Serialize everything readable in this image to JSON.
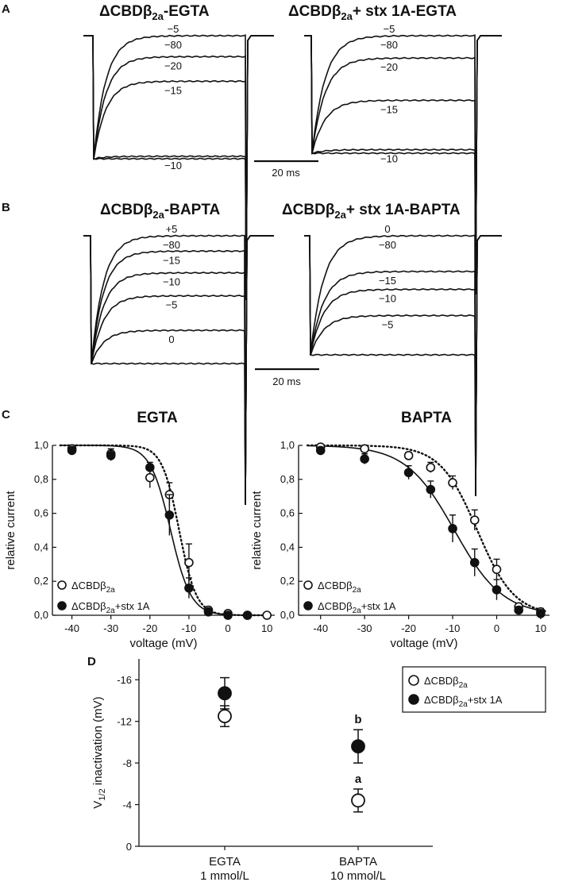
{
  "panel_a": {
    "letter": "A",
    "left_title": {
      "pre": "ΔCBDβ",
      "sub": "2a",
      "post": "-EGTA"
    },
    "right_title": {
      "pre": "ΔCBDβ",
      "sub": "2a",
      "post": "+ stx 1A-EGTA"
    },
    "scale_label": "20 ms",
    "left_traces": [
      {
        "label": "−5",
        "level": 1.0
      },
      {
        "label": "−10",
        "level": 0.98
      },
      {
        "label": "−15",
        "level": 0.37
      },
      {
        "label": "−20",
        "level": 0.17
      },
      {
        "label": "−80",
        "level": 0.0
      }
    ],
    "right_traces": [
      {
        "label": "−5",
        "level": 1.0
      },
      {
        "label": "−10",
        "level": 0.97
      },
      {
        "label": "−15",
        "level": 0.55
      },
      {
        "label": "−20",
        "level": 0.19
      },
      {
        "label": "−80",
        "level": 0.0
      }
    ]
  },
  "panel_b": {
    "letter": "B",
    "left_title": {
      "pre": "ΔCBDβ",
      "sub": "2a",
      "post": "-BAPTA"
    },
    "right_title": {
      "pre": "ΔCBDβ",
      "sub": "2a",
      "post": "+ stx 1A-BAPTA"
    },
    "scale_label": "20 ms",
    "left_traces": [
      {
        "label": "+5",
        "level": 1.0
      },
      {
        "label": "0",
        "level": 0.74
      },
      {
        "label": "−5",
        "level": 0.47
      },
      {
        "label": "−10",
        "level": 0.29
      },
      {
        "label": "−15",
        "level": 0.12
      },
      {
        "label": "−80",
        "level": 0.0
      }
    ],
    "right_traces": [
      {
        "label": "0",
        "level": 1.0
      },
      {
        "label": "−5",
        "level": 0.67
      },
      {
        "label": "−10",
        "level": 0.45
      },
      {
        "label": "−15",
        "level": 0.3
      },
      {
        "label": "−80",
        "level": 0.0
      }
    ]
  },
  "panel_c": {
    "letter": "C",
    "ylabel": "relative current",
    "xlabel": "voltage (mV)",
    "xticks": [
      "-40",
      "-30",
      "-20",
      "-10",
      "0",
      "10"
    ],
    "yticks": [
      "0,0",
      "0,2",
      "0,4",
      "0,6",
      "0,8",
      "1,0"
    ],
    "legend_open": {
      "pre": "ΔCBDβ",
      "sub": "2a",
      "post": ""
    },
    "legend_filled": {
      "pre": "ΔCBDβ",
      "sub": "2a",
      "post": "+stx 1A"
    }
  },
  "panel_d": {
    "letter": "D",
    "ylabel_pre": "V",
    "ylabel_sub": "1/2",
    "ylabel_post": " inactivation (mV)",
    "yticks": [
      "0",
      "-4",
      "-8",
      "-12",
      "-16"
    ],
    "categories": [
      {
        "line1": "EGTA",
        "line2": "1 mmol/L"
      },
      {
        "line1": "BAPTA",
        "line2": "10 mmol/L"
      }
    ],
    "annotation_a": "a",
    "annotation_b": "b",
    "legend_open": {
      "pre": "ΔCBDβ",
      "sub": "2a",
      "post": ""
    },
    "legend_filled": {
      "pre": "ΔCBDβ",
      "sub": "2a",
      "post": "+stx 1A"
    }
  },
  "chart_data": [
    {
      "type": "scatter",
      "title": "EGTA",
      "xlabel": "voltage (mV)",
      "ylabel": "relative current",
      "xlim": [
        -45,
        12
      ],
      "ylim": [
        0,
        1.0
      ],
      "series": [
        {
          "name": "ΔCBDβ2a",
          "marker": "open",
          "fit": "dotted",
          "v_half": -12.5,
          "slope": 2.2,
          "x": [
            -40,
            -30,
            -20,
            -15,
            -10,
            -5,
            0,
            5,
            10
          ],
          "y": [
            0.98,
            0.95,
            0.81,
            0.71,
            0.31,
            0.03,
            0.01,
            0.0,
            0.0
          ],
          "err": [
            0.02,
            0.03,
            0.06,
            0.07,
            0.11,
            0.02,
            0.01,
            0.01,
            0.01
          ]
        },
        {
          "name": "ΔCBDβ2a+stx 1A",
          "marker": "filled",
          "fit": "solid",
          "v_half": -14.7,
          "slope": 2.6,
          "x": [
            -40,
            -30,
            -20,
            -15,
            -10,
            -5,
            0,
            5
          ],
          "y": [
            0.97,
            0.94,
            0.87,
            0.59,
            0.16,
            0.02,
            0.0,
            0.0
          ],
          "err": [
            0.02,
            0.03,
            0.03,
            0.12,
            0.06,
            0.01,
            0.01,
            0.01
          ]
        }
      ]
    },
    {
      "type": "scatter",
      "title": "BAPTA",
      "xlabel": "voltage (mV)",
      "ylabel": "relative current",
      "xlim": [
        -45,
        12
      ],
      "ylim": [
        0,
        1.0
      ],
      "series": [
        {
          "name": "ΔCBDβ2a",
          "marker": "open",
          "fit": "dotted",
          "v_half": -4.4,
          "slope": 4.2,
          "x": [
            -40,
            -30,
            -20,
            -15,
            -10,
            -5,
            0,
            5,
            10
          ],
          "y": [
            0.99,
            0.98,
            0.94,
            0.87,
            0.78,
            0.56,
            0.27,
            0.05,
            0.02
          ],
          "err": [
            0.01,
            0.02,
            0.02,
            0.03,
            0.04,
            0.06,
            0.06,
            0.02,
            0.02
          ]
        },
        {
          "name": "ΔCBDβ2a+stx 1A",
          "marker": "filled",
          "fit": "solid",
          "v_half": -9.6,
          "slope": 5.5,
          "x": [
            -40,
            -30,
            -20,
            -15,
            -10,
            -5,
            0,
            5,
            10
          ],
          "y": [
            0.97,
            0.92,
            0.84,
            0.74,
            0.51,
            0.31,
            0.15,
            0.03,
            0.01
          ],
          "err": [
            0.02,
            0.03,
            0.04,
            0.05,
            0.08,
            0.08,
            0.06,
            0.02,
            0.02
          ]
        }
      ]
    },
    {
      "type": "scatter",
      "ylabel": "V1/2 inactivation (mV)",
      "categories": [
        "EGTA 1 mmol/L",
        "BAPTA 10 mmol/L"
      ],
      "ylim": [
        0,
        -18
      ],
      "series": [
        {
          "name": "ΔCBDβ2a",
          "marker": "open",
          "values": [
            -12.5,
            -4.4
          ],
          "err": [
            1.0,
            1.1
          ]
        },
        {
          "name": "ΔCBDβ2a+stx 1A",
          "marker": "filled",
          "values": [
            -14.7,
            -9.6
          ],
          "err": [
            1.5,
            1.6
          ]
        }
      ],
      "annotations": [
        {
          "category": "BAPTA 10 mmol/L",
          "series": "ΔCBDβ2a",
          "text": "a"
        },
        {
          "category": "BAPTA 10 mmol/L",
          "series": "ΔCBDβ2a+stx 1A",
          "text": "b"
        }
      ]
    }
  ]
}
